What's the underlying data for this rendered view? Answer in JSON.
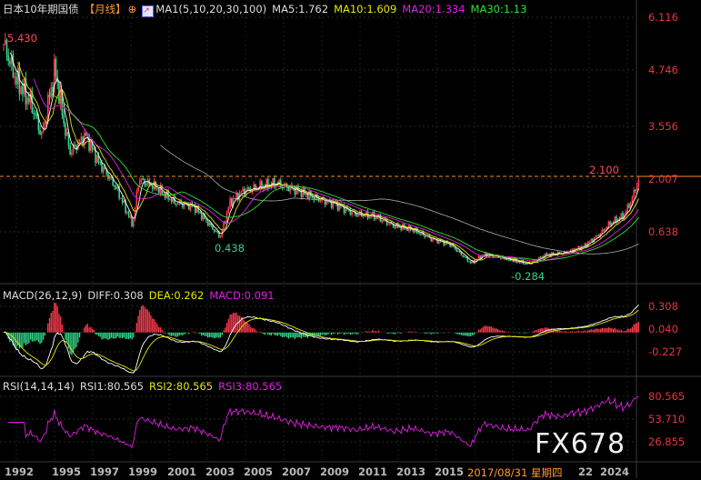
{
  "header": {
    "title": "日本10年期国债",
    "period": "【月线】",
    "crosshair_icon": "crosshair-icon",
    "indicator_icon": "ma-chart-icon",
    "ma_label": "MA1(5,10,20,30,100)",
    "ma5": "MA5:1.762",
    "ma10": "MA10:1.609",
    "ma20": "MA20:1.334",
    "ma30": "MA30:1.13"
  },
  "price_axis": [
    "6.116",
    "4.746",
    "3.556",
    "2.007",
    "0.638"
  ],
  "annotations": {
    "high": "5.430",
    "low1": "0.438",
    "low2": "-0.284",
    "last_high": "2.100"
  },
  "macd": {
    "label": "MACD(26,12,9)",
    "diff": "DIFF:0.308",
    "dea": "DEA:0.262",
    "macd": "MACD:0.091",
    "axis": [
      "0.308",
      "0.040",
      "-0.227"
    ]
  },
  "rsi": {
    "label": "RSI(14,14,14)",
    "rsi1": "RSI1:80.565",
    "rsi2": "RSI2:80.565",
    "rsi3": "RSI3:80.565",
    "axis": [
      "80.565",
      "53.710",
      "26.855"
    ]
  },
  "time_axis": [
    "1992",
    "1995",
    "1997",
    "1999",
    "2001",
    "2003",
    "2005",
    "2007",
    "2009",
    "2011",
    "2013",
    "2015",
    "2024"
  ],
  "crosshair_date": "2017/08/31 星期四",
  "crosshair_tail": "22",
  "watermark": "FX678",
  "colors": {
    "up": "#ff3b4e",
    "down": "#35d38a",
    "ma5": "#ffffff",
    "ma10": "#e6e600",
    "ma20": "#e020e0",
    "ma30": "#30e030",
    "ma100": "#999999",
    "axis": "#e8343c",
    "crosshair": "#ff8c1a"
  },
  "chart_data": {
    "type": "candlestick",
    "price_keypoints": [
      [
        1992.0,
        5.43
      ],
      [
        1992.6,
        4.6
      ],
      [
        1993.5,
        4.0
      ],
      [
        1994.0,
        3.3
      ],
      [
        1994.7,
        4.8
      ],
      [
        1995.5,
        2.8
      ],
      [
        1996.3,
        3.3
      ],
      [
        1997.0,
        2.5
      ],
      [
        1998.0,
        1.7
      ],
      [
        1998.8,
        0.8
      ],
      [
        1999.1,
        2.0
      ],
      [
        2000.0,
        1.8
      ],
      [
        2001.0,
        1.4
      ],
      [
        2002.0,
        1.3
      ],
      [
        2003.4,
        0.5
      ],
      [
        2003.9,
        1.4
      ],
      [
        2004.6,
        1.7
      ],
      [
        2006.3,
        1.9
      ],
      [
        2007.5,
        1.7
      ],
      [
        2008.5,
        1.5
      ],
      [
        2009.5,
        1.35
      ],
      [
        2010.5,
        1.1
      ],
      [
        2011.5,
        1.05
      ],
      [
        2012.5,
        0.8
      ],
      [
        2013.5,
        0.7
      ],
      [
        2014.5,
        0.45
      ],
      [
        2015.5,
        0.3
      ],
      [
        2016.6,
        -0.2
      ],
      [
        2017.3,
        0.05
      ],
      [
        2019.6,
        -0.22
      ],
      [
        2020.5,
        0.02
      ],
      [
        2021.5,
        0.08
      ],
      [
        2022.5,
        0.25
      ],
      [
        2023.3,
        0.55
      ],
      [
        2023.9,
        0.85
      ],
      [
        2024.6,
        1.05
      ],
      [
        2025.0,
        1.4
      ],
      [
        2025.4,
        2.0
      ]
    ]
  }
}
